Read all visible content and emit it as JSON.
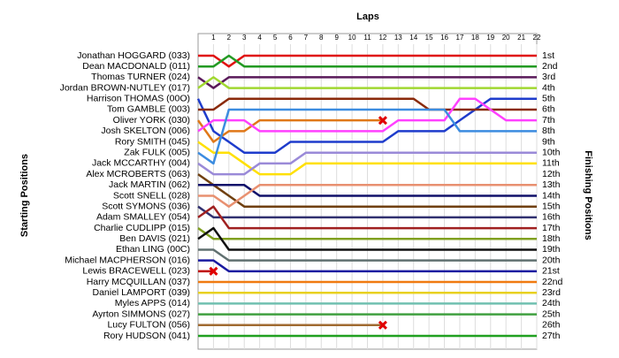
{
  "chart_data": {
    "type": "lap-chart",
    "title": "Laps",
    "y_label_left": "Starting Positions",
    "y_label_right": "Finishing Positions",
    "x": [
      0,
      1,
      2,
      3,
      4,
      5,
      6,
      7,
      8,
      9,
      10,
      11,
      12,
      13,
      14,
      15,
      16,
      17,
      18,
      19,
      20,
      21,
      22
    ],
    "xlim": [
      0,
      22
    ],
    "xticks": [
      1,
      2,
      3,
      4,
      5,
      6,
      7,
      8,
      9,
      10,
      11,
      12,
      13,
      14,
      15,
      16,
      17,
      18,
      19,
      20,
      21,
      22
    ],
    "ylim": [
      1,
      27
    ],
    "finishing_labels": [
      "1st",
      "2nd",
      "3rd",
      "4th",
      "5th",
      "6th",
      "7th",
      "8th",
      "9th",
      "10th",
      "11th",
      "12th",
      "13th",
      "14th",
      "15th",
      "16th",
      "17th",
      "18th",
      "19th",
      "20th",
      "21st",
      "22nd",
      "23rd",
      "24th",
      "25th",
      "26th",
      "27th"
    ],
    "grid": true,
    "series": [
      {
        "name": "Jonathan HOGGARD (033)",
        "color": "#e01010",
        "values": [
          1,
          1,
          2,
          1,
          1,
          1,
          1,
          1,
          1,
          1,
          1,
          1,
          1,
          1,
          1,
          1,
          1,
          1,
          1,
          1,
          1,
          1,
          1
        ]
      },
      {
        "name": "Dean MACDONALD (011)",
        "color": "#239a23",
        "values": [
          2,
          2,
          1,
          2,
          2,
          2,
          2,
          2,
          2,
          2,
          2,
          2,
          2,
          2,
          2,
          2,
          2,
          2,
          2,
          2,
          2,
          2,
          2
        ]
      },
      {
        "name": "Thomas TURNER (024)",
        "color": "#5a1a5a",
        "values": [
          3,
          4,
          3,
          3,
          3,
          3,
          3,
          3,
          3,
          3,
          3,
          3,
          3,
          3,
          3,
          3,
          3,
          3,
          3,
          3,
          3,
          3,
          3
        ]
      },
      {
        "name": "Jordan BROWN-NUTLEY (017)",
        "color": "#a0d830",
        "values": [
          4,
          3,
          4,
          4,
          4,
          4,
          4,
          4,
          4,
          4,
          4,
          4,
          4,
          4,
          4,
          4,
          4,
          4,
          4,
          4,
          4,
          4,
          4
        ]
      },
      {
        "name": "Harrison THOMAS (00O)",
        "color": "#1e3ccc",
        "values": [
          5,
          8,
          9,
          10,
          10,
          10,
          9,
          9,
          9,
          9,
          9,
          9,
          9,
          8,
          8,
          8,
          8,
          7,
          6,
          5,
          5,
          5,
          5
        ]
      },
      {
        "name": "Tom GAMBLE (003)",
        "color": "#8a2a0a",
        "values": [
          6,
          6,
          5,
          5,
          5,
          5,
          5,
          5,
          5,
          5,
          5,
          5,
          5,
          5,
          5,
          6,
          6,
          6,
          6,
          6,
          6,
          6,
          6
        ]
      },
      {
        "name": "Oliver YORK (030)",
        "color": "#e07818",
        "values": [
          7,
          9,
          8,
          8,
          7,
          7,
          7,
          7,
          7,
          7,
          7,
          7,
          7,
          null,
          null,
          null,
          null,
          null,
          null,
          null,
          null,
          null,
          null
        ]
      },
      {
        "name": "Josh SKELTON (006)",
        "color": "#ff40ff",
        "values": [
          8,
          7,
          7,
          7,
          8,
          8,
          8,
          8,
          8,
          8,
          8,
          8,
          8,
          7,
          7,
          7,
          7,
          5,
          5,
          6,
          7,
          7,
          7
        ]
      },
      {
        "name": "Rory SMITH (045)",
        "color": "#ffe000",
        "values": [
          9,
          10,
          10,
          11,
          12,
          12,
          12,
          11,
          11,
          11,
          11,
          11,
          11,
          11,
          11,
          11,
          11,
          11,
          11,
          11,
          11,
          11,
          11
        ]
      },
      {
        "name": "Zak FULK (005)",
        "color": "#3c8ce0",
        "values": [
          10,
          11,
          6,
          6,
          6,
          6,
          6,
          6,
          6,
          6,
          6,
          6,
          6,
          6,
          6,
          6,
          6,
          8,
          8,
          8,
          8,
          8,
          8
        ]
      },
      {
        "name": "Jack MCCARTHY (004)",
        "color": "#9a8ad8",
        "values": [
          11,
          12,
          12,
          12,
          11,
          11,
          11,
          10,
          10,
          10,
          10,
          10,
          10,
          10,
          10,
          10,
          10,
          10,
          10,
          10,
          10,
          10,
          10
        ]
      },
      {
        "name": "Alex MCROBERTS (063)",
        "color": "#704010",
        "values": [
          12,
          13,
          14,
          15,
          15,
          15,
          15,
          15,
          15,
          15,
          15,
          15,
          15,
          15,
          15,
          15,
          15,
          15,
          15,
          15,
          15,
          15,
          15
        ]
      },
      {
        "name": "Jack MARTIN (062)",
        "color": "#10106a",
        "values": [
          13,
          13,
          13,
          13,
          14,
          14,
          14,
          14,
          14,
          14,
          14,
          14,
          14,
          14,
          14,
          14,
          14,
          14,
          14,
          14,
          14,
          14,
          14
        ]
      },
      {
        "name": "Scott SNELL (028)",
        "color": "#e89070",
        "values": [
          14,
          14,
          15,
          14,
          13,
          13,
          13,
          13,
          13,
          13,
          13,
          13,
          13,
          13,
          13,
          13,
          13,
          13,
          13,
          13,
          13,
          13,
          13
        ]
      },
      {
        "name": "Scott SYMONS (036)",
        "color": "#303070",
        "values": [
          15,
          16,
          16,
          16,
          16,
          16,
          16,
          16,
          16,
          16,
          16,
          16,
          16,
          16,
          16,
          16,
          16,
          16,
          16,
          16,
          16,
          16,
          16
        ]
      },
      {
        "name": "Adam SMALLEY (054)",
        "color": "#a02020",
        "values": [
          16,
          15,
          17,
          17,
          17,
          17,
          17,
          17,
          17,
          17,
          17,
          17,
          17,
          17,
          17,
          17,
          17,
          17,
          17,
          17,
          17,
          17,
          17
        ]
      },
      {
        "name": "Charlie CUDLIPP (015)",
        "color": "#80a020",
        "values": [
          17,
          18,
          18,
          18,
          18,
          18,
          18,
          18,
          18,
          18,
          18,
          18,
          18,
          18,
          18,
          18,
          18,
          18,
          18,
          18,
          18,
          18,
          18
        ]
      },
      {
        "name": "Ben DAVIS (021)",
        "color": "#101010",
        "values": [
          18,
          17,
          19,
          19,
          19,
          19,
          19,
          19,
          19,
          19,
          19,
          19,
          19,
          19,
          19,
          19,
          19,
          19,
          19,
          19,
          19,
          19,
          19
        ]
      },
      {
        "name": "Ethan LING (00C)",
        "color": "#607070",
        "values": [
          19,
          19,
          20,
          20,
          20,
          20,
          20,
          20,
          20,
          20,
          20,
          20,
          20,
          20,
          20,
          20,
          20,
          20,
          20,
          20,
          20,
          20,
          20
        ]
      },
      {
        "name": "Michael MACPHERSON (016)",
        "color": "#1a1aa0",
        "values": [
          20,
          20,
          21,
          21,
          21,
          21,
          21,
          21,
          21,
          21,
          21,
          21,
          21,
          21,
          21,
          21,
          21,
          21,
          21,
          21,
          21,
          21,
          21
        ]
      },
      {
        "name": "Lewis BRACEWELL (023)",
        "color": "#c00000",
        "values": [
          21,
          21,
          null,
          null,
          null,
          null,
          null,
          null,
          null,
          null,
          null,
          null,
          null,
          null,
          null,
          null,
          null,
          null,
          null,
          null,
          null,
          null,
          null
        ]
      },
      {
        "name": "Harry MCQUILLAN (037)",
        "color": "#f07a10",
        "values": [
          22,
          22,
          22,
          22,
          22,
          22,
          22,
          22,
          22,
          22,
          22,
          22,
          22,
          22,
          22,
          22,
          22,
          22,
          22,
          22,
          22,
          22,
          22
        ]
      },
      {
        "name": "Daniel LAMPORT (039)",
        "color": "#e8d020",
        "values": [
          23,
          23,
          23,
          23,
          23,
          23,
          23,
          23,
          23,
          23,
          23,
          23,
          23,
          23,
          23,
          23,
          23,
          23,
          23,
          23,
          23,
          23,
          23
        ]
      },
      {
        "name": "Myles APPS (014)",
        "color": "#70c0b0",
        "values": [
          24,
          24,
          24,
          24,
          24,
          24,
          24,
          24,
          24,
          24,
          24,
          24,
          24,
          24,
          24,
          24,
          24,
          24,
          24,
          24,
          24,
          24,
          24
        ]
      },
      {
        "name": "Ayrton SIMMONS (027)",
        "color": "#40a040",
        "values": [
          25,
          25,
          25,
          25,
          25,
          25,
          25,
          25,
          25,
          25,
          25,
          25,
          25,
          25,
          25,
          25,
          25,
          25,
          25,
          25,
          25,
          25,
          25
        ]
      },
      {
        "name": "Lucy FULTON (056)",
        "color": "#a06a30",
        "values": [
          26,
          26,
          26,
          26,
          26,
          26,
          26,
          26,
          26,
          26,
          26,
          26,
          26,
          null,
          null,
          null,
          null,
          null,
          null,
          null,
          null,
          null,
          null
        ]
      },
      {
        "name": "Rory HUDSON (041)",
        "color": "#20a020",
        "values": [
          27,
          27,
          27,
          27,
          27,
          27,
          27,
          27,
          27,
          27,
          27,
          27,
          27,
          27,
          27,
          27,
          27,
          27,
          27,
          27,
          27,
          27,
          27
        ]
      }
    ]
  }
}
